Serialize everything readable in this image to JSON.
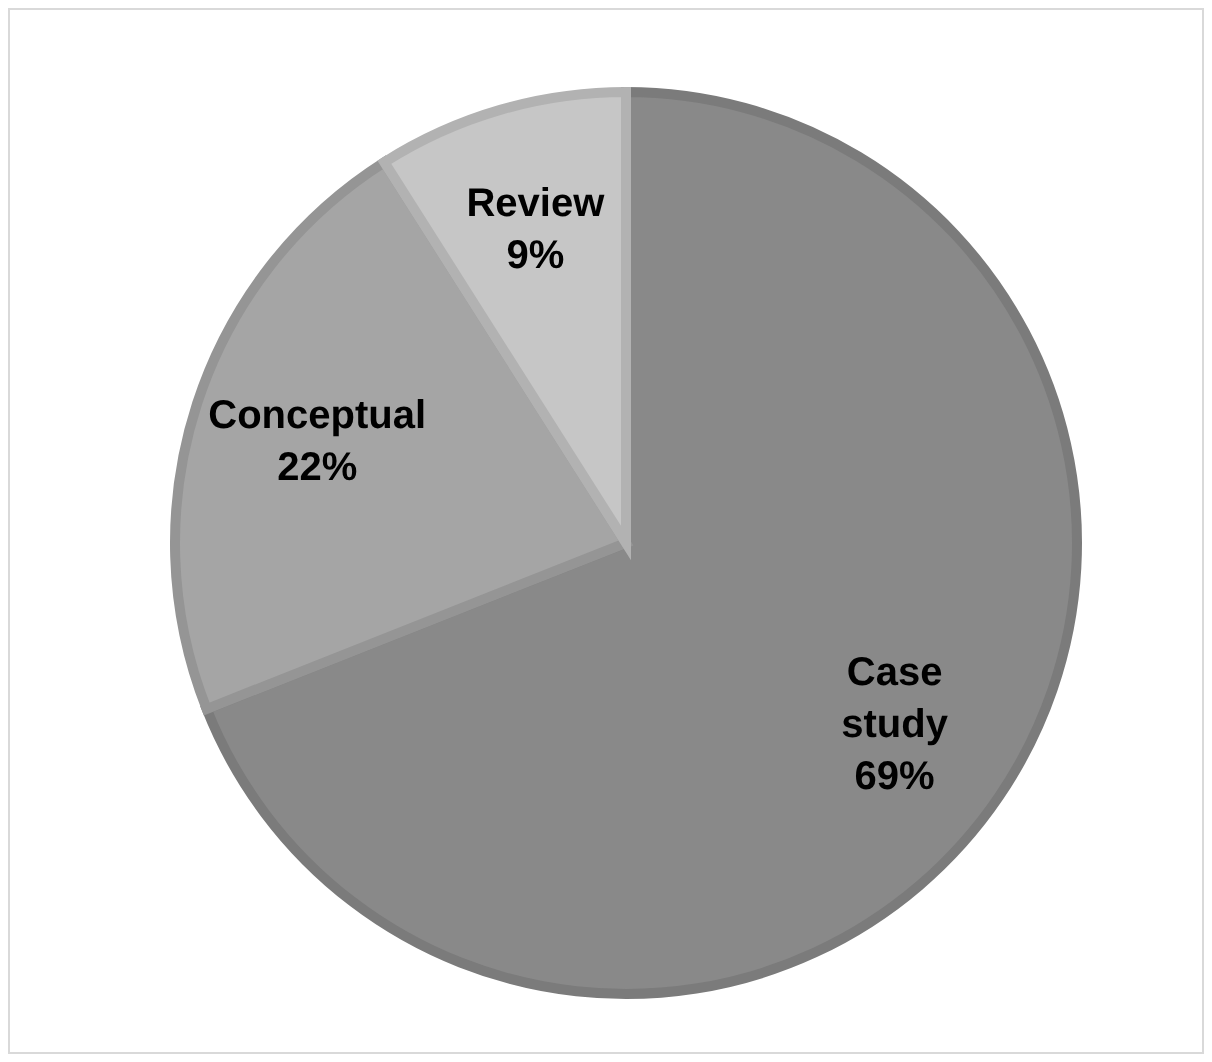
{
  "chart_data": {
    "type": "pie",
    "categories": [
      "Case study",
      "Conceptual",
      "Review"
    ],
    "values": [
      69,
      22,
      9
    ],
    "colors": [
      "#898989",
      "#a5a5a5",
      "#c6c6c6"
    ],
    "value_labels": [
      "69%",
      "22%",
      "9%"
    ],
    "legend": false
  }
}
